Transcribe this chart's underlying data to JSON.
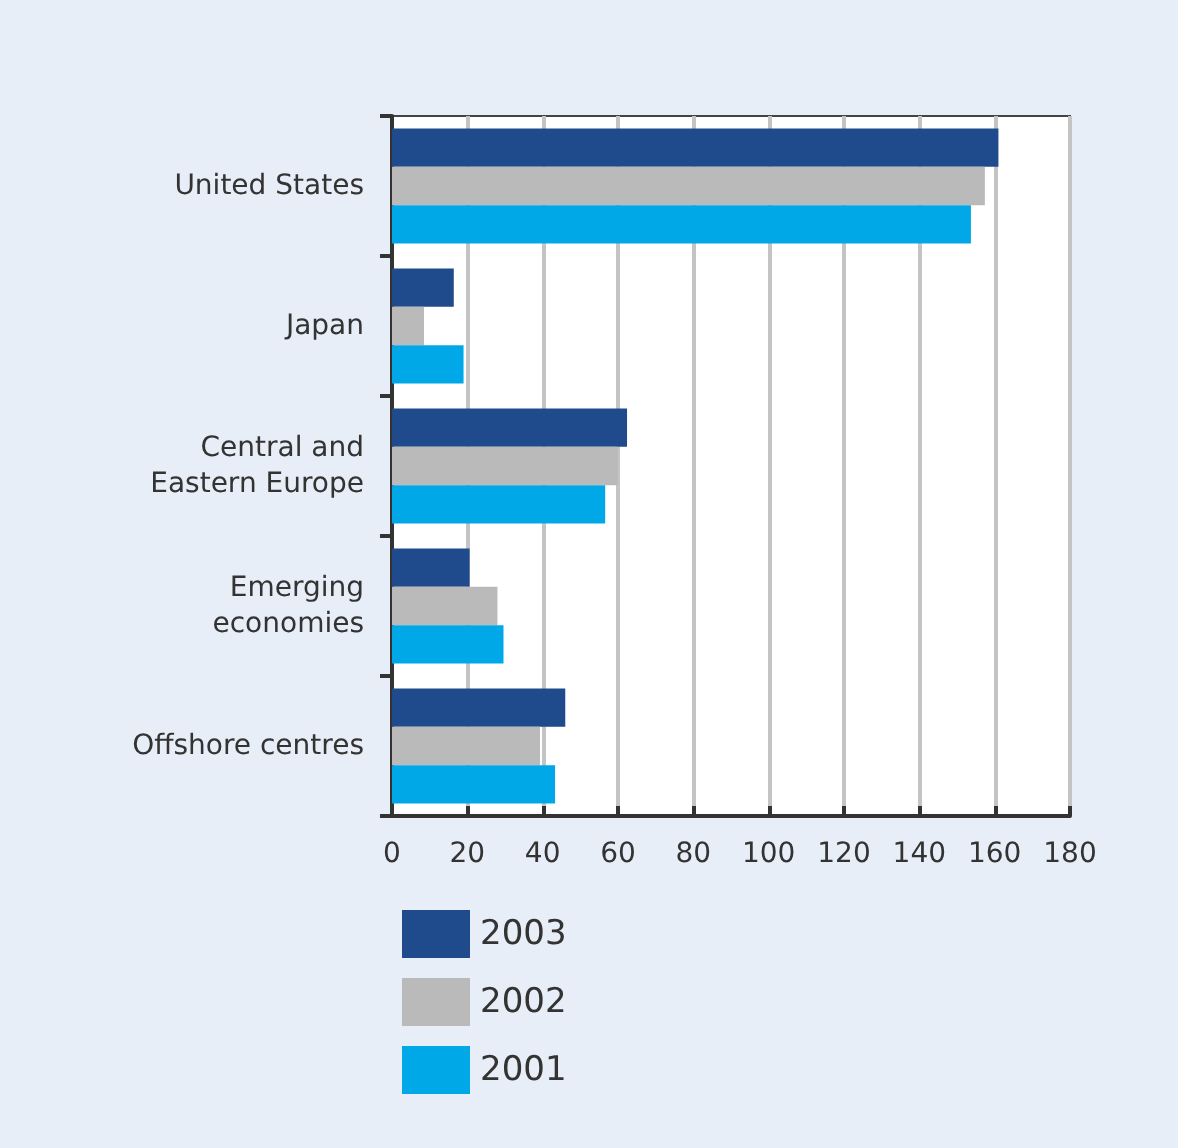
{
  "chart_data": {
    "type": "bar",
    "orientation": "horizontal",
    "categories": [
      "United States",
      "Japan",
      "Central and\nEastern Europe",
      "Emerging\neconomies",
      "Offshore centres"
    ],
    "series": [
      {
        "name": "2003",
        "color": "#1f4a8c",
        "values": [
          161,
          16.4,
          62.4,
          20.6,
          46
        ]
      },
      {
        "name": "2002",
        "color": "#bababa",
        "values": [
          157.4,
          8.5,
          60,
          28,
          39.3
        ]
      },
      {
        "name": "2001",
        "color": "#00a8e8",
        "values": [
          153.7,
          19,
          56.6,
          29.6,
          43.3
        ]
      }
    ],
    "xlim": [
      0,
      180
    ],
    "xticks": [
      0,
      20,
      40,
      60,
      80,
      100,
      120,
      140,
      160,
      180
    ],
    "grid": "x",
    "legend": "bottom left"
  }
}
